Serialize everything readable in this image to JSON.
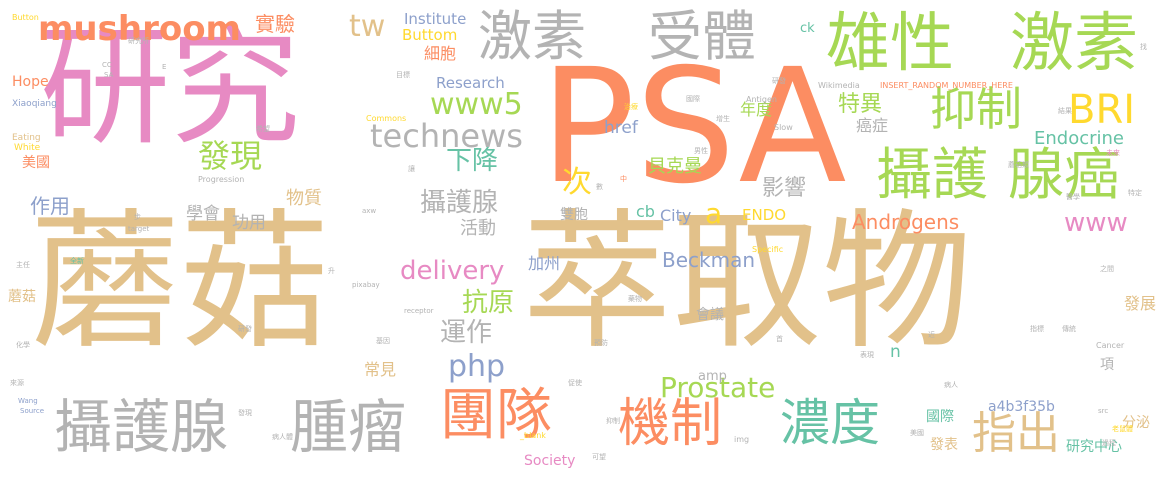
{
  "words": [
    {
      "text": "蘑菇",
      "cls": "tan"
    },
    {
      "text": "萃取物",
      "cls": "tan"
    },
    {
      "text": "研究",
      "cls": "pink"
    },
    {
      "text": "PSA",
      "cls": "orange"
    },
    {
      "text": "雄性",
      "cls": "green"
    },
    {
      "text": "激素",
      "cls": "green"
    },
    {
      "text": "激素",
      "cls": "grey"
    },
    {
      "text": "受體",
      "cls": "grey"
    },
    {
      "text": "mushroom",
      "cls": "orange"
    },
    {
      "text": "tw",
      "cls": "tan"
    },
    {
      "text": "實驗",
      "cls": "orange"
    },
    {
      "text": "抑制",
      "cls": "green"
    },
    {
      "text": "BRI",
      "cls": "yellow"
    },
    {
      "text": "攝護",
      "cls": "green"
    },
    {
      "text": "腺癌",
      "cls": "green"
    },
    {
      "text": "technews",
      "cls": "grey"
    },
    {
      "text": "www5",
      "cls": "green"
    },
    {
      "text": "發現",
      "cls": "green"
    },
    {
      "text": "下降",
      "cls": "teal"
    },
    {
      "text": "攝護腺",
      "cls": "grey"
    },
    {
      "text": "腫瘤",
      "cls": "grey"
    },
    {
      "text": "團隊",
      "cls": "orange"
    },
    {
      "text": "機制",
      "cls": "orange"
    },
    {
      "text": "濃度",
      "cls": "teal"
    },
    {
      "text": "指出",
      "cls": "tan"
    },
    {
      "text": "Prostate",
      "cls": "green"
    },
    {
      "text": "delivery",
      "cls": "pink"
    },
    {
      "text": "php",
      "cls": "blue"
    },
    {
      "text": "抗原",
      "cls": "green"
    },
    {
      "text": "運作",
      "cls": "grey"
    },
    {
      "text": "攝護腺",
      "cls": "grey"
    },
    {
      "text": "次",
      "cls": "yellow"
    },
    {
      "text": "特異",
      "cls": "green"
    },
    {
      "text": "影響",
      "cls": "grey"
    },
    {
      "text": "Androgens",
      "cls": "orange"
    },
    {
      "text": "www",
      "cls": "pink"
    },
    {
      "text": "Beckman",
      "cls": "blue"
    },
    {
      "text": "a",
      "cls": "yellow"
    },
    {
      "text": "Institute",
      "cls": "blue"
    },
    {
      "text": "Buttom",
      "cls": "yellow"
    },
    {
      "text": "Research",
      "cls": "blue"
    },
    {
      "text": "細胞",
      "cls": "orange"
    },
    {
      "text": "年度",
      "cls": "green"
    },
    {
      "text": "貝克曼",
      "cls": "green"
    },
    {
      "text": "Endocrine",
      "cls": "teal"
    },
    {
      "text": "癌症",
      "cls": "grey"
    },
    {
      "text": "href",
      "cls": "blue"
    },
    {
      "text": "ck",
      "cls": "teal"
    },
    {
      "text": "物質",
      "cls": "tan"
    },
    {
      "text": "功用",
      "cls": "grey"
    },
    {
      "text": "學會",
      "cls": "grey"
    },
    {
      "text": "活動",
      "cls": "grey"
    },
    {
      "text": "作用",
      "cls": "blue"
    },
    {
      "text": "美國",
      "cls": "orange"
    },
    {
      "text": "Hope",
      "cls": "orange"
    },
    {
      "text": "雙胞",
      "cls": "grey"
    },
    {
      "text": "cb",
      "cls": "teal"
    },
    {
      "text": "City",
      "cls": "blue"
    },
    {
      "text": "ENDO",
      "cls": "yellow"
    },
    {
      "text": "加州",
      "cls": "blue"
    },
    {
      "text": "會議",
      "cls": "grey"
    },
    {
      "text": "常見",
      "cls": "tan"
    },
    {
      "text": "amp",
      "cls": "grey"
    },
    {
      "text": "n",
      "cls": "teal"
    },
    {
      "text": "國際",
      "cls": "teal"
    },
    {
      "text": "a4b3f35b",
      "cls": "blue"
    },
    {
      "text": "發表",
      "cls": "tan"
    },
    {
      "text": "研究中心",
      "cls": "teal"
    },
    {
      "text": "分泌",
      "cls": "tan"
    },
    {
      "text": "發展",
      "cls": "tan"
    },
    {
      "text": "蘑菇",
      "cls": "tan"
    },
    {
      "text": "Society",
      "cls": "pink"
    },
    {
      "text": "項",
      "cls": "grey"
    },
    {
      "text": "Button",
      "cls": "yellow"
    },
    {
      "text": "CC",
      "cls": "grey"
    },
    {
      "text": "SA",
      "cls": "grey"
    },
    {
      "text": "Xiaoqiang",
      "cls": "blue"
    },
    {
      "text": "Eating",
      "cls": "tan"
    },
    {
      "text": "White",
      "cls": "yellow"
    },
    {
      "text": "Progression",
      "cls": "grey"
    },
    {
      "text": "Commons",
      "cls": "yellow"
    },
    {
      "text": "Wikimedia",
      "cls": "grey"
    },
    {
      "text": "INSERT_RANDOM_NUMBER_HERE",
      "cls": "orange"
    },
    {
      "text": "Antigen",
      "cls": "grey"
    },
    {
      "text": "Slow",
      "cls": "grey"
    },
    {
      "text": "target",
      "cls": "grey"
    },
    {
      "text": "pixabay",
      "cls": "grey"
    },
    {
      "text": "receptor",
      "cls": "grey"
    },
    {
      "text": "Specific",
      "cls": "yellow"
    },
    {
      "text": "Cancer",
      "cls": "grey"
    },
    {
      "text": "Wang",
      "cls": "blue"
    },
    {
      "text": "Source",
      "cls": "blue"
    },
    {
      "text": "_blank",
      "cls": "yellow"
    },
    {
      "text": "img",
      "cls": "grey"
    },
    {
      "text": "希望",
      "cls": "grey"
    },
    {
      "text": "E",
      "cls": "grey"
    },
    {
      "text": "目標",
      "cls": "grey"
    },
    {
      "text": "研發",
      "cls": "grey"
    },
    {
      "text": "未來",
      "cls": "pink"
    },
    {
      "text": "特定",
      "cls": "grey"
    },
    {
      "text": "病人",
      "cls": "grey"
    },
    {
      "text": "之間",
      "cls": "grey"
    },
    {
      "text": "過程",
      "cls": "grey"
    },
    {
      "text": "結果",
      "cls": "grey"
    },
    {
      "text": "病人體",
      "cls": "grey"
    },
    {
      "text": "老鼠體",
      "cls": "yellow"
    },
    {
      "text": "男性",
      "cls": "grey"
    },
    {
      "text": "全新",
      "cls": "teal"
    },
    {
      "text": "主任",
      "cls": "grey"
    },
    {
      "text": "化學",
      "cls": "grey"
    },
    {
      "text": "來源",
      "cls": "grey"
    },
    {
      "text": "axw",
      "cls": "grey"
    },
    {
      "text": "步",
      "cls": "grey"
    },
    {
      "text": "升",
      "cls": "grey"
    },
    {
      "text": "數",
      "cls": "grey"
    },
    {
      "text": "中",
      "cls": "orange"
    },
    {
      "text": "近",
      "cls": "grey"
    },
    {
      "text": "首",
      "cls": "grey"
    },
    {
      "text": "src",
      "cls": "grey"
    },
    {
      "text": "增生",
      "cls": "grey"
    },
    {
      "text": "蘑菇類",
      "cls": "grey"
    },
    {
      "text": "預防",
      "cls": "grey"
    },
    {
      "text": "藥物",
      "cls": "grey"
    },
    {
      "text": "醫學",
      "cls": "grey"
    },
    {
      "text": "表現",
      "cls": "grey"
    },
    {
      "text": "可望",
      "cls": "grey"
    },
    {
      "text": "傳統",
      "cls": "grey"
    },
    {
      "text": "指標",
      "cls": "grey"
    },
    {
      "text": "治療",
      "cls": "yellow"
    },
    {
      "text": "國際",
      "cls": "grey"
    },
    {
      "text": "研發",
      "cls": "grey"
    },
    {
      "text": "發現",
      "cls": "grey"
    },
    {
      "text": "抑制",
      "cls": "grey"
    },
    {
      "text": "促使",
      "cls": "grey"
    },
    {
      "text": "基因",
      "cls": "grey"
    },
    {
      "text": "美國",
      "cls": "grey"
    },
    {
      "text": "讓",
      "cls": "grey"
    },
    {
      "text": "找",
      "cls": "grey"
    },
    {
      "text": "研究所",
      "cls": "grey"
    }
  ]
}
